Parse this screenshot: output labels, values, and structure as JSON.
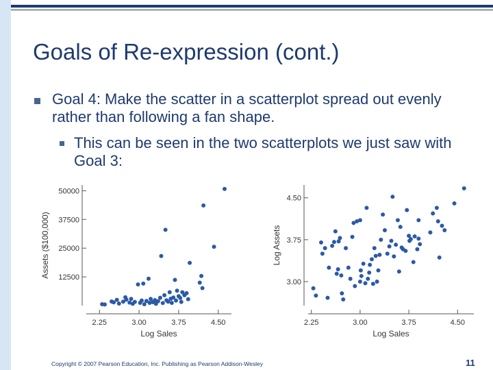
{
  "slide": {
    "title": "Goals of Re-expression (cont.)",
    "bullet1": "Goal 4: Make the scatter in a scatterplot spread out evenly rather than following a fan shape.",
    "bullet2": "This can be seen in the two scatterplots we just saw with Goal 3:",
    "footer": "Copyright © 2007 Pearson Education, Inc. Publishing as Pearson Addison-Wesley",
    "page_number": "11",
    "colors": {
      "text": "#1e3a6e",
      "bullet": "#4a6491",
      "points": "#2b5aa6",
      "sidebar": "#d7e6f5"
    }
  },
  "chart_data": [
    {
      "type": "scatter",
      "title": "",
      "xlabel": "Log Sales",
      "ylabel": "Assets ($100,000)",
      "xlim": [
        2.0,
        4.75
      ],
      "ylim": [
        0,
        52500
      ],
      "xticks": [
        2.25,
        3.0,
        3.75,
        4.5
      ],
      "xtick_labels": [
        "2.25",
        "3.00",
        "3.75",
        "4.50"
      ],
      "yticks": [
        12500,
        25000,
        37500,
        50000
      ],
      "ytick_labels": [
        "12500",
        "25000",
        "37500",
        "50000"
      ],
      "points": [
        [
          2.3,
          600
        ],
        [
          2.35,
          500
        ],
        [
          2.48,
          1800
        ],
        [
          2.52,
          1400
        ],
        [
          2.58,
          2500
        ],
        [
          2.62,
          900
        ],
        [
          2.7,
          1700
        ],
        [
          2.74,
          3600
        ],
        [
          2.76,
          2600
        ],
        [
          2.82,
          1300
        ],
        [
          2.85,
          2900
        ],
        [
          2.88,
          800
        ],
        [
          2.92,
          1600
        ],
        [
          2.98,
          9200
        ],
        [
          3.02,
          1200
        ],
        [
          3.05,
          2200
        ],
        [
          3.08,
          9600
        ],
        [
          3.1,
          600
        ],
        [
          3.14,
          2000
        ],
        [
          3.18,
          11700
        ],
        [
          3.2,
          1200
        ],
        [
          3.22,
          2900
        ],
        [
          3.26,
          1500
        ],
        [
          3.3,
          2400
        ],
        [
          3.32,
          800
        ],
        [
          3.36,
          1900
        ],
        [
          3.4,
          3400
        ],
        [
          3.42,
          21600
        ],
        [
          3.45,
          1100
        ],
        [
          3.48,
          4500
        ],
        [
          3.5,
          33000
        ],
        [
          3.52,
          2300
        ],
        [
          3.55,
          1700
        ],
        [
          3.58,
          5800
        ],
        [
          3.6,
          3000
        ],
        [
          3.62,
          1200
        ],
        [
          3.65,
          3500
        ],
        [
          3.68,
          11200
        ],
        [
          3.7,
          2200
        ],
        [
          3.72,
          6500
        ],
        [
          3.75,
          4100
        ],
        [
          3.78,
          3300
        ],
        [
          3.8,
          1600
        ],
        [
          3.82,
          5800
        ],
        [
          3.86,
          4500
        ],
        [
          3.9,
          5400
        ],
        [
          3.93,
          2800
        ],
        [
          3.96,
          18600
        ],
        [
          4.15,
          10000
        ],
        [
          4.18,
          12900
        ],
        [
          4.2,
          7600
        ],
        [
          4.22,
          43600
        ],
        [
          4.42,
          25600
        ],
        [
          4.62,
          50800
        ]
      ]
    },
    {
      "type": "scatter",
      "title": "",
      "xlabel": "Log Sales",
      "ylabel": "Log Assets",
      "xlim": [
        2.2,
        4.75
      ],
      "ylim": [
        2.57,
        4.73
      ],
      "xticks": [
        2.25,
        3.0,
        3.75,
        4.5
      ],
      "xtick_labels": [
        "2.25",
        "3.00",
        "3.75",
        "4.50"
      ],
      "yticks": [
        3.0,
        3.75,
        4.5
      ],
      "ytick_labels": [
        "3.00",
        "3.75",
        "4.50"
      ],
      "points": [
        [
          2.28,
          2.88
        ],
        [
          2.32,
          2.75
        ],
        [
          2.4,
          3.7
        ],
        [
          2.42,
          3.5
        ],
        [
          2.46,
          3.6
        ],
        [
          2.5,
          2.71
        ],
        [
          2.52,
          3.25
        ],
        [
          2.57,
          3.64
        ],
        [
          2.6,
          3.71
        ],
        [
          2.62,
          3.9
        ],
        [
          2.64,
          3.14
        ],
        [
          2.66,
          3.22
        ],
        [
          2.67,
          3.72
        ],
        [
          2.69,
          3.78
        ],
        [
          2.71,
          3.11
        ],
        [
          2.72,
          2.79
        ],
        [
          2.74,
          2.68
        ],
        [
          2.78,
          3.6
        ],
        [
          2.82,
          3.25
        ],
        [
          2.85,
          3.05
        ],
        [
          2.88,
          3.8
        ],
        [
          2.9,
          4.05
        ],
        [
          2.92,
          2.92
        ],
        [
          2.95,
          4.08
        ],
        [
          3.0,
          4.1
        ],
        [
          3.0,
          3.0
        ],
        [
          3.01,
          3.2
        ],
        [
          3.02,
          3.1
        ],
        [
          3.05,
          3.32
        ],
        [
          3.08,
          2.97
        ],
        [
          3.1,
          4.32
        ],
        [
          3.12,
          3.05
        ],
        [
          3.14,
          3.16
        ],
        [
          3.15,
          3.3
        ],
        [
          3.18,
          3.4
        ],
        [
          3.2,
          2.96
        ],
        [
          3.22,
          3.6
        ],
        [
          3.24,
          3.46
        ],
        [
          3.26,
          3.0
        ],
        [
          3.28,
          3.2
        ],
        [
          3.3,
          3.48
        ],
        [
          3.32,
          3.75
        ],
        [
          3.35,
          4.2
        ],
        [
          3.38,
          3.92
        ],
        [
          3.42,
          3.5
        ],
        [
          3.45,
          3.63
        ],
        [
          3.48,
          3.73
        ],
        [
          3.5,
          4.52
        ],
        [
          3.52,
          3.45
        ],
        [
          3.55,
          3.66
        ],
        [
          3.58,
          4.1
        ],
        [
          3.6,
          3.18
        ],
        [
          3.64,
          3.61
        ],
        [
          3.66,
          3.58
        ],
        [
          3.7,
          3.55
        ],
        [
          3.72,
          4.28
        ],
        [
          3.75,
          3.82
        ],
        [
          3.76,
          3.73
        ],
        [
          3.78,
          3.76
        ],
        [
          3.82,
          3.35
        ],
        [
          3.84,
          3.81
        ],
        [
          3.88,
          3.58
        ],
        [
          3.9,
          3.77
        ],
        [
          3.92,
          3.67
        ],
        [
          4.08,
          3.88
        ],
        [
          4.12,
          4.22
        ],
        [
          4.18,
          4.32
        ],
        [
          4.2,
          4.08
        ],
        [
          4.22,
          3.43
        ],
        [
          4.26,
          4.0
        ],
        [
          4.45,
          4.4
        ],
        [
          4.6,
          4.67
        ],
        [
          4.3,
          3.92
        ],
        [
          3.9,
          4.1
        ],
        [
          3.62,
          3.98
        ]
      ]
    }
  ]
}
